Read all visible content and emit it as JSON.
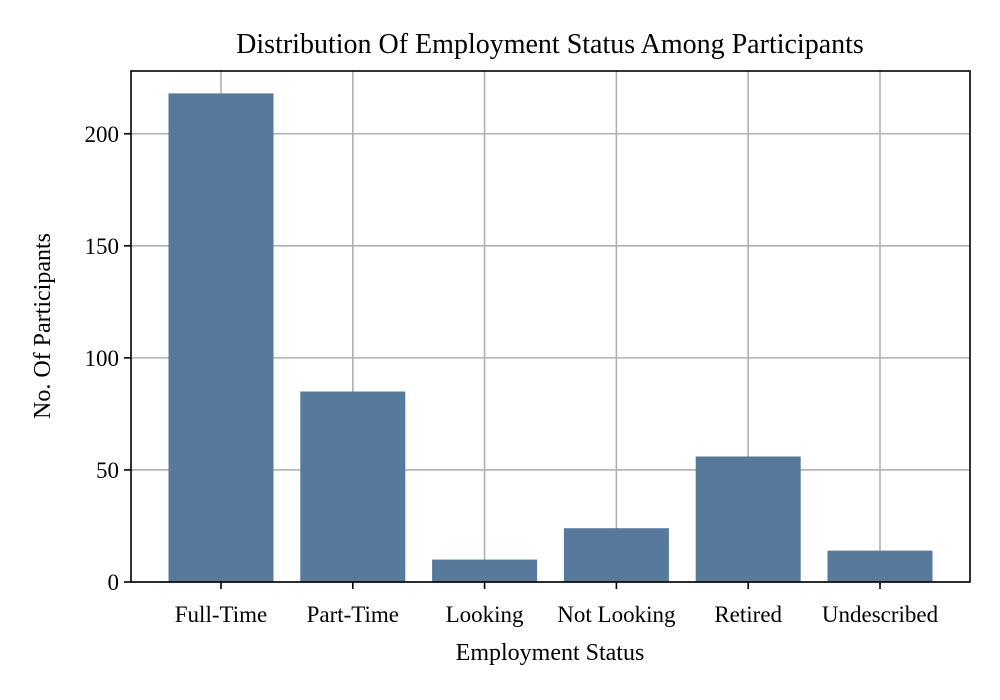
{
  "colors": {
    "bar": "#56799c",
    "grid": "#b0b0b0",
    "axis": "#000000"
  },
  "chart_data": {
    "type": "bar",
    "title": "Distribution Of Employment Status Among Participants",
    "xlabel": "Employment Status",
    "ylabel": "No. Of Participants",
    "categories": [
      "Full-Time",
      "Part-Time",
      "Looking",
      "Not Looking",
      "Retired",
      "Undescribed"
    ],
    "values": [
      218,
      85,
      10,
      24,
      56,
      14
    ],
    "ylim": [
      0,
      228
    ],
    "yticks": [
      0,
      50,
      100,
      150,
      200
    ],
    "grid": true,
    "legend": "none"
  }
}
